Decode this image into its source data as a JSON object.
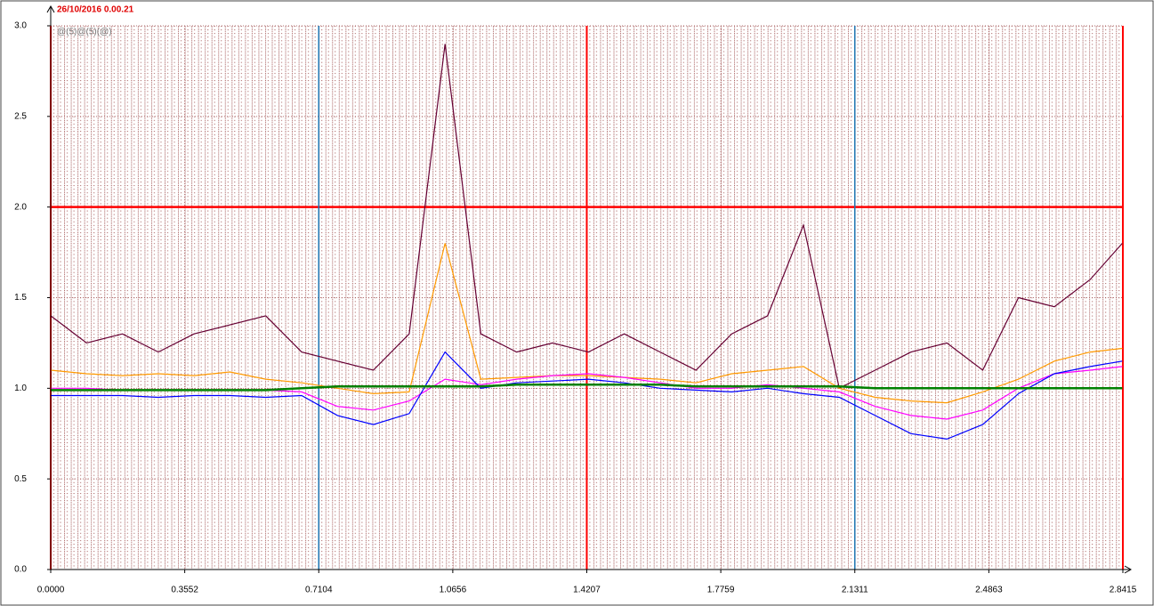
{
  "chart_data": {
    "type": "line",
    "title": "26/10/2016 0.00.21",
    "subtitle": "@(5)@(5)(@)",
    "x": [
      0,
      0.095,
      0.19,
      0.285,
      0.38,
      0.475,
      0.57,
      0.665,
      0.76,
      0.855,
      0.95,
      1.045,
      1.14,
      1.235,
      1.33,
      1.425,
      1.52,
      1.615,
      1.71,
      1.805,
      1.9,
      1.995,
      2.09,
      2.185,
      2.28,
      2.375,
      2.47,
      2.565,
      2.66,
      2.755,
      2.84
    ],
    "series": [
      {
        "color": "#660033",
        "values": [
          1.4,
          1.25,
          1.3,
          1.2,
          1.3,
          1.35,
          1.4,
          1.2,
          1.15,
          1.1,
          1.3,
          2.9,
          1.3,
          1.2,
          1.25,
          1.2,
          1.3,
          1.2,
          1.1,
          1.3,
          1.4,
          1.9,
          1.0,
          1.1,
          1.2,
          1.25,
          1.1,
          1.5,
          1.45,
          1.6,
          1.8
        ]
      },
      {
        "color": "#ff9900",
        "values": [
          1.1,
          1.08,
          1.07,
          1.08,
          1.07,
          1.09,
          1.05,
          1.03,
          1.0,
          0.97,
          0.98,
          1.8,
          1.05,
          1.06,
          1.07,
          1.07,
          1.06,
          1.05,
          1.03,
          1.08,
          1.1,
          1.12,
          1.0,
          0.95,
          0.93,
          0.92,
          0.98,
          1.05,
          1.15,
          1.2,
          1.22
        ]
      },
      {
        "color": "#ff00ff",
        "values": [
          1.0,
          1.0,
          0.99,
          0.99,
          0.99,
          0.99,
          0.99,
          0.98,
          0.9,
          0.88,
          0.93,
          1.05,
          1.02,
          1.05,
          1.07,
          1.08,
          1.06,
          1.03,
          1.0,
          1.0,
          1.02,
          1.0,
          0.98,
          0.9,
          0.85,
          0.83,
          0.88,
          1.0,
          1.08,
          1.1,
          1.12
        ]
      },
      {
        "color": "#0000ff",
        "values": [
          0.96,
          0.96,
          0.96,
          0.95,
          0.96,
          0.96,
          0.95,
          0.96,
          0.85,
          0.8,
          0.86,
          1.2,
          1.0,
          1.03,
          1.04,
          1.05,
          1.03,
          1.0,
          0.99,
          0.98,
          1.0,
          0.97,
          0.95,
          0.85,
          0.75,
          0.72,
          0.8,
          0.97,
          1.08,
          1.12,
          1.15
        ]
      },
      {
        "color": "#008000",
        "values": [
          0.99,
          0.99,
          0.99,
          0.99,
          0.99,
          0.99,
          0.99,
          1.0,
          1.01,
          1.01,
          1.01,
          1.01,
          1.01,
          1.02,
          1.02,
          1.02,
          1.02,
          1.02,
          1.01,
          1.01,
          1.01,
          1.01,
          1.01,
          1.0,
          1.0,
          1.0,
          1.0,
          1.0,
          1.0,
          1.0,
          1.0
        ]
      }
    ],
    "xlim": [
      0,
      2.8415
    ],
    "ylim": [
      0,
      3
    ],
    "xticks": [
      {
        "value": 0,
        "label": "0.0000"
      },
      0.3552,
      0.7104,
      1.0656,
      1.4207,
      1.7759,
      2.1311,
      2.4863,
      2.8415
    ],
    "yticks": [
      {
        "value": 0,
        "label": "0.0"
      },
      0.5,
      {
        "value": 1,
        "label": "1.0"
      },
      1.5,
      {
        "value": 2,
        "label": "2.0"
      },
      2.5,
      {
        "value": 3,
        "label": "3.0"
      }
    ],
    "hlines": [
      {
        "value": 2,
        "color": "#ff0000"
      }
    ],
    "vlines": [
      {
        "value": 0,
        "color": "#ff0000"
      },
      {
        "value": 0.7104,
        "color": "#1f77b4"
      },
      {
        "value": 1.4207,
        "color": "#ff0000"
      },
      {
        "value": 2.1311,
        "color": "#1f77b4"
      },
      {
        "value": 2.8415,
        "color": "#ff0000"
      }
    ],
    "grid": true
  }
}
